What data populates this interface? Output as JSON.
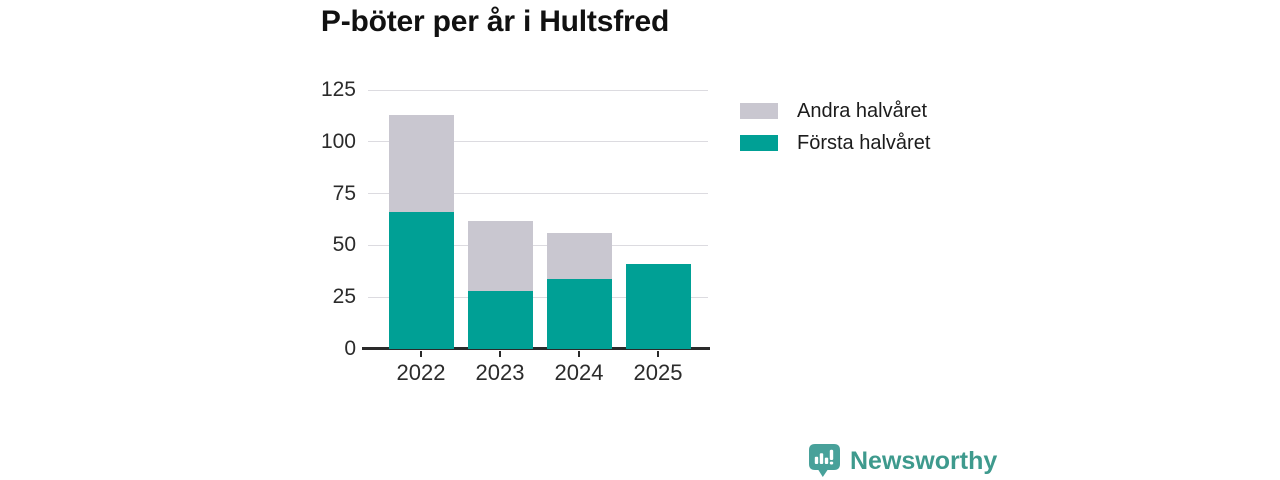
{
  "title": "P-böter per år i Hultsfred",
  "colors": {
    "first_half": "#00a095",
    "second_half": "#c9c7d0",
    "gridline": "#dcdbe0",
    "axis": "#2a2a2a",
    "brand_teal": "#3e9a8d"
  },
  "chart_data": {
    "type": "bar",
    "stacked": true,
    "title": "P-böter per år i Hultsfred",
    "categories": [
      "2022",
      "2023",
      "2024",
      "2025"
    ],
    "series": [
      {
        "name": "Första halvåret",
        "color": "#00a095",
        "values": [
          66,
          28,
          34,
          41
        ]
      },
      {
        "name": "Andra halvåret",
        "color": "#c9c7d0",
        "values": [
          47,
          34,
          22,
          0
        ]
      }
    ],
    "xlabel": "",
    "ylabel": "",
    "ylim": [
      0,
      125
    ],
    "y_ticks": [
      0,
      25,
      50,
      75,
      100,
      125
    ],
    "grid": true,
    "legend_position": "right"
  },
  "legend": {
    "items": [
      {
        "label": "Andra halvåret",
        "color": "#c9c7d0"
      },
      {
        "label": "Första halvåret",
        "color": "#00a095"
      }
    ]
  },
  "footer": {
    "brand": "Newsworthy"
  }
}
